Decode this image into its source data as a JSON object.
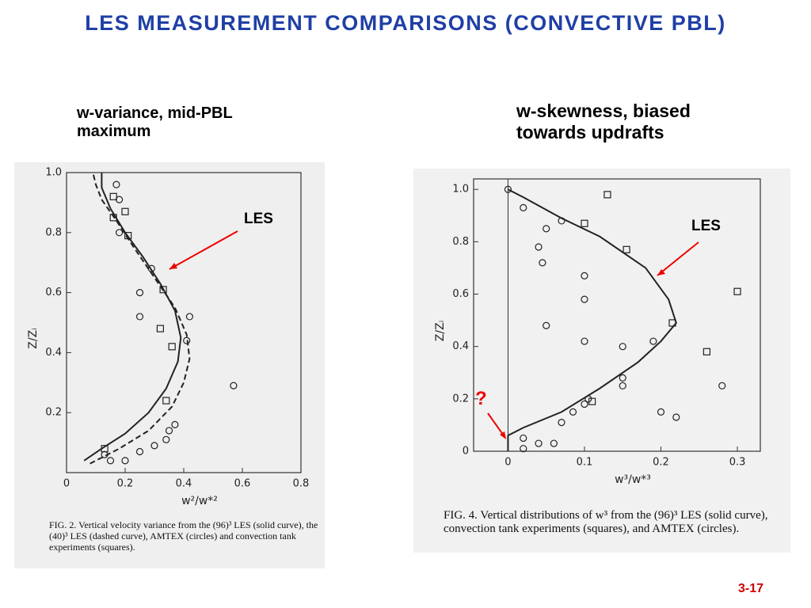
{
  "title": "LES MEASUREMENT COMPARISONS (CONVECTIVE PBL)",
  "page_number": "3-17",
  "chart_data": [
    {
      "type": "scatter-line",
      "heading": "w-variance, mid-PBL maximum",
      "xlabel": "w²/w*²",
      "ylabel": "Z/Zᵢ",
      "caption": "FIG. 2. Vertical velocity variance from the (96)³ LES (solid curve), the (40)³ LES (dashed curve), AMTEX (circles) and convection tank experiments (squares).",
      "annotations": [
        "LES"
      ],
      "xlim": [
        0,
        0.8
      ],
      "ylim": [
        0,
        1.0
      ],
      "xticks": [
        0,
        0.2,
        0.4,
        0.6,
        0.8
      ],
      "yticks": [
        0.2,
        0.4,
        0.6,
        0.8,
        {
          "value": 1,
          "label": "1.0"
        }
      ],
      "series": [
        {
          "marker": "line",
          "dash": false,
          "color": "#222222",
          "x": [
            0.06,
            0.12,
            0.2,
            0.28,
            0.34,
            0.38,
            0.39,
            0.37,
            0.32,
            0.26,
            0.2,
            0.15,
            0.12,
            0.12
          ],
          "values": [
            0.04,
            0.08,
            0.13,
            0.2,
            0.28,
            0.37,
            0.45,
            0.54,
            0.63,
            0.72,
            0.8,
            0.88,
            0.95,
            1.0
          ]
        },
        {
          "marker": "line",
          "dash": true,
          "color": "#222222",
          "x": [
            0.08,
            0.18,
            0.28,
            0.36,
            0.4,
            0.42,
            0.41,
            0.37,
            0.3,
            0.23,
            0.17,
            0.12,
            0.1,
            0.09
          ],
          "values": [
            0.03,
            0.08,
            0.14,
            0.22,
            0.3,
            0.38,
            0.46,
            0.55,
            0.65,
            0.75,
            0.84,
            0.91,
            0.96,
            1.0
          ]
        },
        {
          "marker": "circle",
          "color": "#222222",
          "x": [
            0.13,
            0.15,
            0.2,
            0.25,
            0.3,
            0.34,
            0.35,
            0.37,
            0.57,
            0.41,
            0.42,
            0.25,
            0.25,
            0.29,
            0.18,
            0.18,
            0.17
          ],
          "values": [
            0.06,
            0.04,
            0.04,
            0.07,
            0.09,
            0.11,
            0.14,
            0.16,
            0.29,
            0.44,
            0.52,
            0.52,
            0.6,
            0.68,
            0.8,
            0.91,
            0.96
          ]
        },
        {
          "marker": "square",
          "color": "#222222",
          "x": [
            0.16,
            0.2,
            0.16,
            0.21,
            0.33,
            0.32,
            0.36,
            0.34,
            0.13
          ],
          "values": [
            0.92,
            0.87,
            0.85,
            0.79,
            0.61,
            0.48,
            0.42,
            0.24,
            0.08
          ]
        }
      ]
    },
    {
      "type": "scatter-line",
      "heading": "w-skewness, biased towards updrafts",
      "xlabel": "w³/w*³",
      "ylabel": "Z/Zᵢ",
      "caption": "FIG. 4. Vertical distributions of w³ from the (96)³ LES (solid curve), convection tank experiments (squares), and AMTEX (circles).",
      "annotations": [
        "LES",
        "?"
      ],
      "xlim": [
        -0.045,
        0.33
      ],
      "ylim": [
        0,
        1.04
      ],
      "xticks": [
        0,
        0.1,
        0.2,
        0.3
      ],
      "yticks": [
        0,
        0.2,
        0.4,
        0.6,
        0.8,
        {
          "value": 1,
          "label": "1.0"
        }
      ],
      "series": [
        {
          "marker": "line",
          "dash": false,
          "color": "#222222",
          "x": [
            0,
            0,
            0.02,
            0.07,
            0.12,
            0.17,
            0.2,
            0.22,
            0.21,
            0.18,
            0.12,
            0.07,
            0.02,
            0
          ],
          "values": [
            0,
            0.06,
            0.09,
            0.15,
            0.24,
            0.34,
            0.42,
            0.49,
            0.58,
            0.7,
            0.82,
            0.89,
            0.97,
            1.0
          ]
        },
        {
          "marker": "circle",
          "color": "#222222",
          "x": [
            0,
            0.02,
            0.07,
            0.05,
            0.04,
            0.045,
            0.1,
            0.1,
            0.05,
            0.1,
            0.15,
            0.19,
            0.15,
            0.15,
            0.105,
            0.1,
            0.085,
            0.07,
            0.2,
            0.22,
            0.28,
            0.02,
            0.04,
            0.06,
            0.02
          ],
          "values": [
            1.0,
            0.93,
            0.88,
            0.85,
            0.78,
            0.72,
            0.67,
            0.58,
            0.48,
            0.42,
            0.4,
            0.42,
            0.28,
            0.25,
            0.2,
            0.18,
            0.15,
            0.11,
            0.15,
            0.13,
            0.25,
            0.05,
            0.03,
            0.03,
            0.01
          ]
        },
        {
          "marker": "square",
          "color": "#222222",
          "x": [
            0.13,
            0.1,
            0.155,
            0.3,
            0.215,
            0.26,
            0.11
          ],
          "values": [
            0.98,
            0.87,
            0.77,
            0.61,
            0.49,
            0.38,
            0.19
          ]
        }
      ]
    }
  ]
}
